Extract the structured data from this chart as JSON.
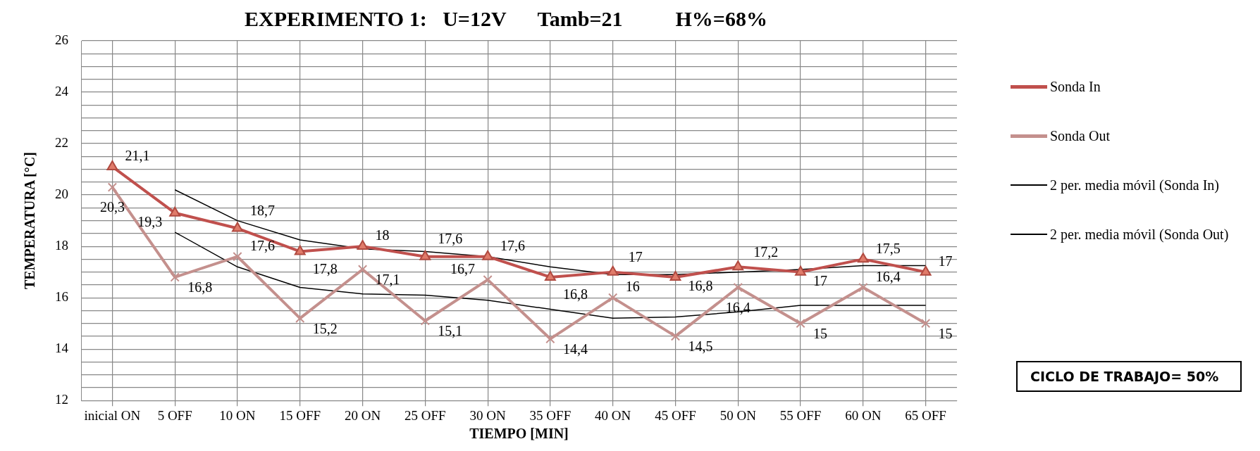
{
  "chart_data": {
    "type": "line",
    "title": "EXPERIMENTO 1:   U=12V      Tamb=21          H%=68%",
    "xlabel": "TIEMPO [MIN]",
    "ylabel": "TEMPERATURA [°C]",
    "categories": [
      "inicial ON",
      "5 OFF",
      "10 ON",
      "15 OFF",
      "20 ON",
      "25 OFF",
      "30 ON",
      "35 OFF",
      "40 ON",
      "45 OFF",
      "50 ON",
      "55 OFF",
      "60 ON",
      "65 OFF"
    ],
    "series": [
      {
        "name": "Sonda In",
        "color": "#c0504d",
        "marker": "triangle",
        "values": [
          21.1,
          19.3,
          18.7,
          17.8,
          18,
          17.6,
          17.6,
          16.8,
          17,
          16.8,
          17.2,
          17,
          17.5,
          17
        ],
        "value_labels": [
          "21,1",
          "19,3",
          "18,7",
          "17,8",
          "18",
          "17,6",
          "17,6",
          "16,8",
          "17",
          "16,8",
          "17,2",
          "17",
          "17,5",
          "17"
        ]
      },
      {
        "name": "Sonda Out",
        "color": "#c4908d",
        "marker": "cross",
        "values": [
          20.3,
          16.8,
          17.6,
          15.2,
          17.1,
          15.1,
          16.7,
          14.4,
          16,
          14.5,
          16.4,
          15,
          16.4,
          15
        ],
        "value_labels": [
          "20,3",
          "16,8",
          "17,6",
          "15,2",
          "17,1",
          "15,1",
          "16,7",
          "14,4",
          "16",
          "14,5",
          "16,4",
          "15",
          "16,4",
          "15"
        ]
      },
      {
        "name": "2 per. media móvil (Sonda In)",
        "color": "#000000",
        "marker": "none",
        "values": [
          null,
          20.2,
          19,
          18.25,
          17.9,
          17.8,
          17.6,
          17.2,
          16.9,
          16.9,
          17,
          17.1,
          17.25,
          17.25
        ]
      },
      {
        "name": "2 per. media móvil (Sonda Out)",
        "color": "#000000",
        "marker": "none",
        "values": [
          null,
          18.55,
          17.2,
          16.4,
          16.15,
          16.1,
          15.9,
          15.55,
          15.2,
          15.25,
          15.45,
          15.7,
          15.7,
          15.7
        ]
      }
    ],
    "ylim": [
      12,
      26
    ],
    "yticks": [
      12,
      {
        "value": 12.5,
        "label": null
      },
      {
        "value": 13,
        "label": null
      },
      {
        "value": 13.5,
        "label": null
      },
      14,
      {
        "value": 14.5,
        "label": null
      },
      {
        "value": 15,
        "label": null
      },
      {
        "value": 15.5,
        "label": null
      },
      16,
      {
        "value": 16.5,
        "label": null
      },
      {
        "value": 17,
        "label": null
      },
      {
        "value": 17.5,
        "label": null
      },
      18,
      {
        "value": 18.5,
        "label": null
      },
      {
        "value": 19,
        "label": null
      },
      {
        "value": 19.5,
        "label": null
      },
      20,
      {
        "value": 20.5,
        "label": null
      },
      {
        "value": 21,
        "label": null
      },
      {
        "value": 21.5,
        "label": null
      },
      22,
      {
        "value": 22.5,
        "label": null
      },
      {
        "value": 23,
        "label": null
      },
      {
        "value": 23.5,
        "label": null
      },
      24,
      {
        "value": 24.5,
        "label": null
      },
      {
        "value": 25,
        "label": null
      },
      {
        "value": 25.5,
        "label": null
      },
      26
    ],
    "grid": true,
    "legend": "right",
    "annotations": [
      "CICLO DE TRABAJO= 50%"
    ]
  }
}
